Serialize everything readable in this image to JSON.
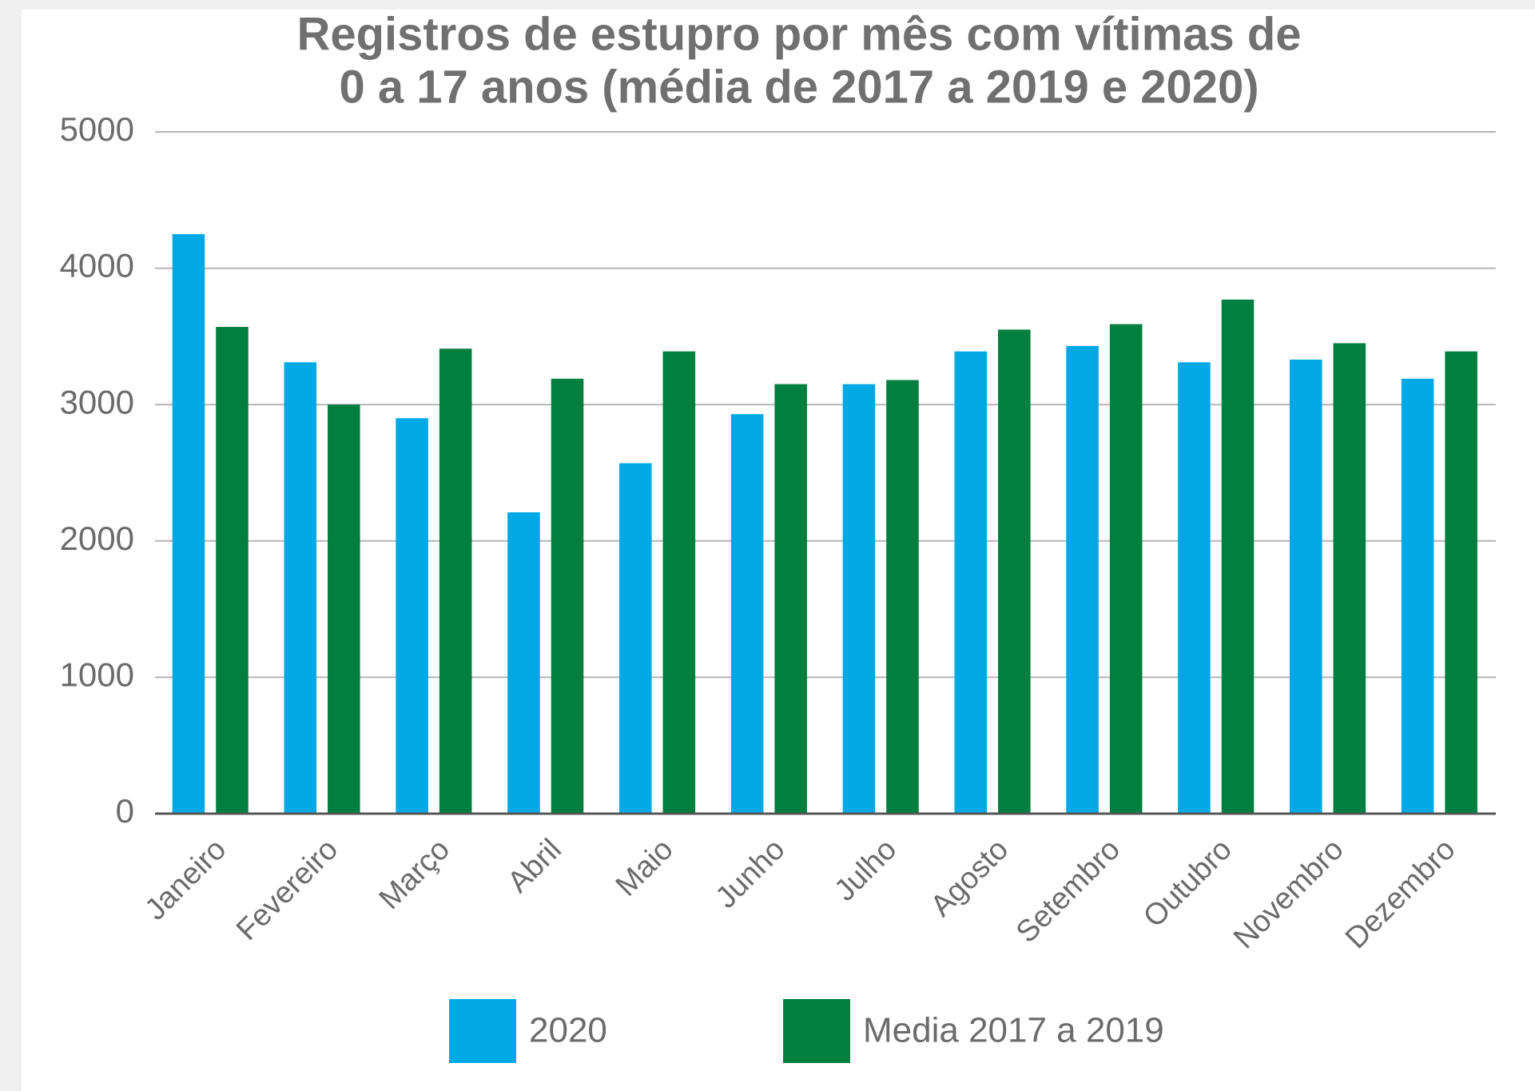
{
  "chart_data": {
    "type": "bar",
    "title": [
      "Registros de estupro por mês com vítimas de",
      "0 a 17 anos (média de 2017 a 2019 e 2020)"
    ],
    "categories": [
      "Janeiro",
      "Fevereiro",
      "Março",
      "Abril",
      "Maio",
      "Junho",
      "Julho",
      "Agosto",
      "Setembro",
      "Outubro",
      "Novembro",
      "Dezembro"
    ],
    "series": [
      {
        "name": "2020",
        "color": "#00a8e6",
        "values": [
          4250,
          3310,
          2900,
          2210,
          2570,
          2930,
          3150,
          3390,
          3430,
          3310,
          3330,
          3190
        ]
      },
      {
        "name": "Media 2017 a 2019",
        "color": "#007f3e",
        "values": [
          3570,
          3000,
          3410,
          3190,
          3390,
          3150,
          3180,
          3550,
          3590,
          3770,
          3450,
          3390
        ]
      }
    ],
    "ylim": [
      0,
      5000
    ],
    "yticks": [
      0,
      1000,
      2000,
      3000,
      4000,
      5000
    ],
    "grid": true
  }
}
